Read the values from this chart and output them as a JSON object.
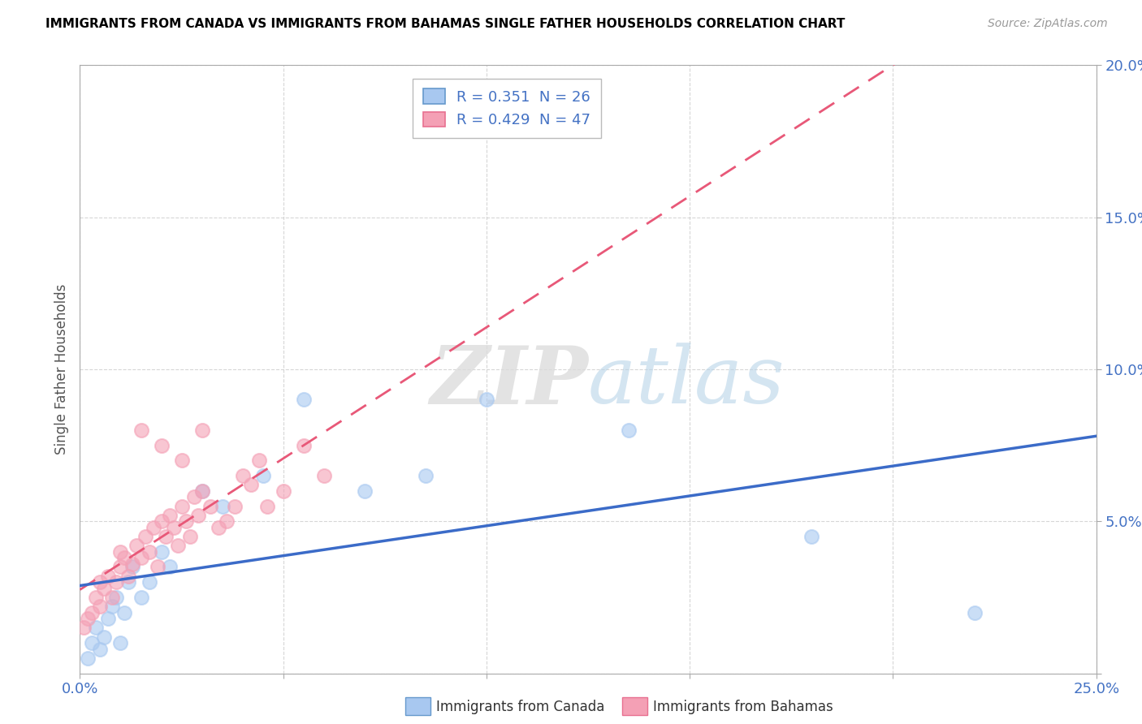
{
  "title": "IMMIGRANTS FROM CANADA VS IMMIGRANTS FROM BAHAMAS SINGLE FATHER HOUSEHOLDS CORRELATION CHART",
  "source": "Source: ZipAtlas.com",
  "ylabel": "Single Father Households",
  "xlim": [
    0.0,
    0.25
  ],
  "ylim": [
    0.0,
    0.2
  ],
  "xtick_positions": [
    0.0,
    0.05,
    0.1,
    0.15,
    0.2,
    0.25
  ],
  "ytick_positions": [
    0.0,
    0.05,
    0.1,
    0.15,
    0.2
  ],
  "canada_R": 0.351,
  "canada_N": 26,
  "bahamas_R": 0.429,
  "bahamas_N": 47,
  "canada_color": "#A8C8F0",
  "bahamas_color": "#F4A0B5",
  "canada_line_color": "#3B6BC8",
  "bahamas_line_color": "#E85878",
  "canada_x": [
    0.002,
    0.003,
    0.004,
    0.005,
    0.006,
    0.007,
    0.008,
    0.009,
    0.01,
    0.011,
    0.012,
    0.013,
    0.015,
    0.017,
    0.02,
    0.022,
    0.03,
    0.035,
    0.045,
    0.055,
    0.07,
    0.085,
    0.1,
    0.135,
    0.18,
    0.22
  ],
  "canada_y": [
    0.005,
    0.01,
    0.015,
    0.008,
    0.012,
    0.018,
    0.022,
    0.025,
    0.01,
    0.02,
    0.03,
    0.035,
    0.025,
    0.03,
    0.04,
    0.035,
    0.06,
    0.055,
    0.065,
    0.09,
    0.06,
    0.065,
    0.09,
    0.08,
    0.045,
    0.02
  ],
  "bahamas_x": [
    0.001,
    0.002,
    0.003,
    0.004,
    0.005,
    0.005,
    0.006,
    0.007,
    0.008,
    0.009,
    0.01,
    0.01,
    0.011,
    0.012,
    0.013,
    0.014,
    0.015,
    0.016,
    0.017,
    0.018,
    0.019,
    0.02,
    0.021,
    0.022,
    0.023,
    0.024,
    0.025,
    0.026,
    0.027,
    0.028,
    0.029,
    0.03,
    0.032,
    0.034,
    0.036,
    0.038,
    0.04,
    0.042,
    0.044,
    0.046,
    0.05,
    0.055,
    0.06,
    0.015,
    0.02,
    0.025,
    0.03
  ],
  "bahamas_y": [
    0.015,
    0.018,
    0.02,
    0.025,
    0.022,
    0.03,
    0.028,
    0.032,
    0.025,
    0.03,
    0.035,
    0.04,
    0.038,
    0.032,
    0.036,
    0.042,
    0.038,
    0.045,
    0.04,
    0.048,
    0.035,
    0.05,
    0.045,
    0.052,
    0.048,
    0.042,
    0.055,
    0.05,
    0.045,
    0.058,
    0.052,
    0.06,
    0.055,
    0.048,
    0.05,
    0.055,
    0.065,
    0.062,
    0.07,
    0.055,
    0.06,
    0.075,
    0.065,
    0.08,
    0.075,
    0.07,
    0.08
  ],
  "watermark_zip": "ZIP",
  "watermark_atlas": "atlas",
  "title_fontsize": 11,
  "source_fontsize": 10,
  "tick_fontsize": 13,
  "ylabel_fontsize": 12
}
